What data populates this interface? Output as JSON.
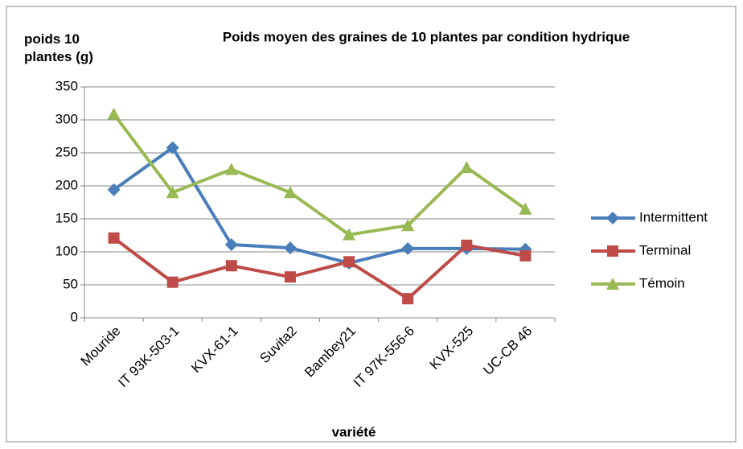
{
  "chart_data": {
    "type": "line",
    "title": "Poids moyen des graines de 10 plantes par condition hydrique",
    "y_label": "poids 10 plantes (g)",
    "x_label": "variété",
    "categories": [
      "Mouride",
      "IT 93K-503-1",
      "KVX-61-1",
      "Suvita2",
      "Bambey21",
      "IT 97K-556-6",
      "KVX-525",
      "UC-CB 46"
    ],
    "series": [
      {
        "name": "Intermittent",
        "color": "#4a7ebb",
        "marker": "diamond",
        "values": [
          194,
          258,
          111,
          106,
          83,
          105,
          105,
          104
        ]
      },
      {
        "name": "Terminal",
        "color": "#be4b48",
        "marker": "square",
        "values": [
          121,
          54,
          79,
          62,
          85,
          29,
          110,
          94
        ]
      },
      {
        "name": "Témoin",
        "color": "#98b954",
        "marker": "triangle",
        "values": [
          309,
          190,
          225,
          190,
          126,
          140,
          228,
          165
        ]
      }
    ],
    "ylim": [
      0,
      350
    ],
    "yticks": [
      0,
      50,
      100,
      150,
      200,
      250,
      300,
      350
    ],
    "grid": true,
    "legend": "right"
  }
}
